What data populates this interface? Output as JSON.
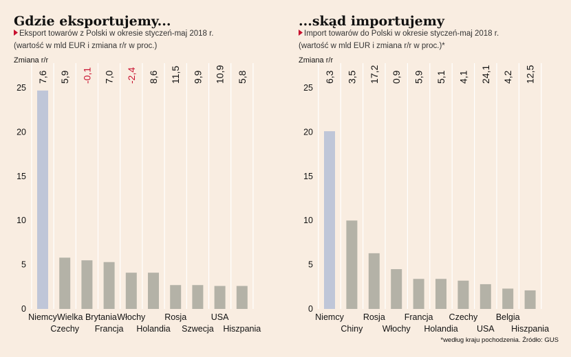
{
  "chart_data": [
    {
      "type": "bar",
      "title": "Gdzie eksportujemy...",
      "subtitle_line1": "Eksport towarów z Polski w okresie styczeń-maj 2018 r.",
      "subtitle_line2": "(wartość w mld EUR i zmiana r/r w proc.)",
      "change_label": "Zmiana r/r",
      "yticks": [
        0,
        5,
        10,
        15,
        20,
        25
      ],
      "ylim": [
        0,
        26
      ],
      "grid": "vertical",
      "categories": [
        "Niemcy",
        "Czechy",
        "Wielka Brytania",
        "Francja",
        "Włochy",
        "Holandia",
        "Rosja",
        "Szwecja",
        "USA",
        "Hiszpania"
      ],
      "values": [
        24.7,
        5.8,
        5.5,
        5.3,
        4.1,
        4.1,
        2.7,
        2.7,
        2.6,
        2.6
      ],
      "changes": [
        "7,6",
        "5,9",
        "-0,1",
        "7,0",
        "-2,4",
        "8,6",
        "11,5",
        "9,9",
        "10,9",
        "5,8"
      ],
      "colors": {
        "highlight": "#bfc6d8",
        "bar": "#b4b2a7",
        "negative": "#c8102e"
      }
    },
    {
      "type": "bar",
      "title": "...skąd importujemy",
      "subtitle_line1": "Import towarów do Polski w okresie styczeń-maj 2018 r.",
      "subtitle_line2": "(wartość w mld EUR i zmiana r/r w proc.)*",
      "change_label": "Zmiana r/r",
      "yticks": [
        0,
        5,
        10,
        15,
        20,
        25
      ],
      "ylim": [
        0,
        26
      ],
      "grid": "vertical",
      "categories": [
        "Niemcy",
        "Chiny",
        "Rosja",
        "Włochy",
        "Francja",
        "Holandia",
        "Czechy",
        "USA",
        "Belgia",
        "Hiszpania"
      ],
      "values": [
        20.1,
        10.0,
        6.3,
        4.5,
        3.4,
        3.4,
        3.2,
        2.8,
        2.3,
        2.1
      ],
      "changes": [
        "6,3",
        "3,5",
        "17,2",
        "0,9",
        "5,9",
        "5,1",
        "4,1",
        "24,1",
        "4,2",
        "12,5"
      ],
      "colors": {
        "highlight": "#bfc6d8",
        "bar": "#b4b2a7",
        "negative": "#c8102e"
      },
      "footnote": "*według kraju pochodzenia. Źródło: GUS"
    }
  ],
  "colors": {
    "background": "#f9ede1",
    "grid": "#ffffff",
    "accent": "#c8102e"
  }
}
